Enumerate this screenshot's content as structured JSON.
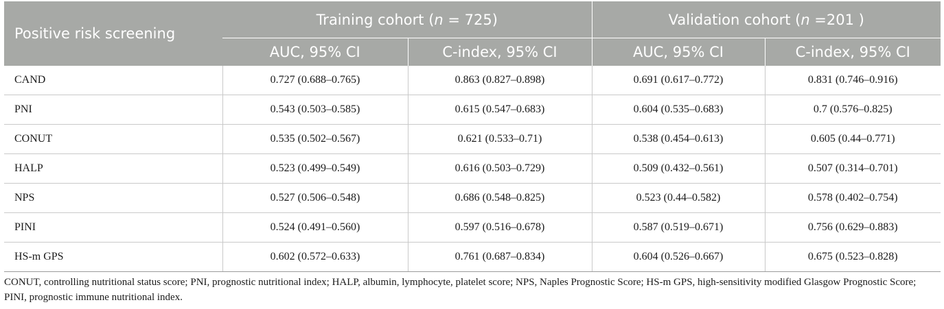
{
  "table": {
    "stub_header": "Positive risk screening",
    "groups": [
      {
        "label_prefix": "Training cohort (",
        "label_var": "n",
        "label_suffix": " = 725)"
      },
      {
        "label_prefix": "Validation cohort (",
        "label_var": "n",
        "label_suffix": " =201 )"
      }
    ],
    "subheaders": [
      "AUC, 95% CI",
      "C-index, 95% CI",
      "AUC, 95% CI",
      "C-index, 95% CI"
    ],
    "rows": [
      {
        "label": "CAND",
        "cells": [
          "0.727 (0.688–0.765)",
          "0.863 (0.827–0.898)",
          "0.691 (0.617–0.772)",
          "0.831 (0.746–0.916)"
        ]
      },
      {
        "label": "PNI",
        "cells": [
          "0.543 (0.503–0.585)",
          "0.615 (0.547–0.683)",
          "0.604 (0.535–0.683)",
          "0.7 (0.576–0.825)"
        ]
      },
      {
        "label": "CONUT",
        "cells": [
          "0.535 (0.502–0.567)",
          "0.621 (0.533–0.71)",
          "0.538 (0.454–0.613)",
          "0.605 (0.44–0.771)"
        ]
      },
      {
        "label": "HALP",
        "cells": [
          "0.523 (0.499–0.549)",
          "0.616 (0.503–0.729)",
          "0.509 (0.432–0.561)",
          "0.507 (0.314–0.701)"
        ]
      },
      {
        "label": "NPS",
        "cells": [
          "0.527 (0.506–0.548)",
          "0.686 (0.548–0.825)",
          "0.523 (0.44–0.582)",
          "0.578 (0.402–0.754)"
        ]
      },
      {
        "label": "PINI",
        "cells": [
          "0.524 (0.491–0.560)",
          "0.597 (0.516–0.678)",
          "0.587 (0.519–0.671)",
          "0.756 (0.629–0.883)"
        ]
      },
      {
        "label": "HS-m GPS",
        "cells": [
          "0.602 (0.572–0.633)",
          "0.761 (0.687–0.834)",
          "0.604 (0.526–0.667)",
          "0.675 (0.523–0.828)"
        ]
      }
    ]
  },
  "footnote": "CONUT, controlling nutritional status score; PNI, prognostic nutritional index; HALP, albumin, lymphocyte, platelet score; NPS, Naples Prognostic Score; HS-m GPS, high-sensitivity modified Glasgow Prognostic Score; PINI, prognostic immune nutritional index.",
  "colors": {
    "header_bg": "#a7a9a6",
    "header_text": "#ffffff",
    "rule": "#c9c9c9"
  }
}
